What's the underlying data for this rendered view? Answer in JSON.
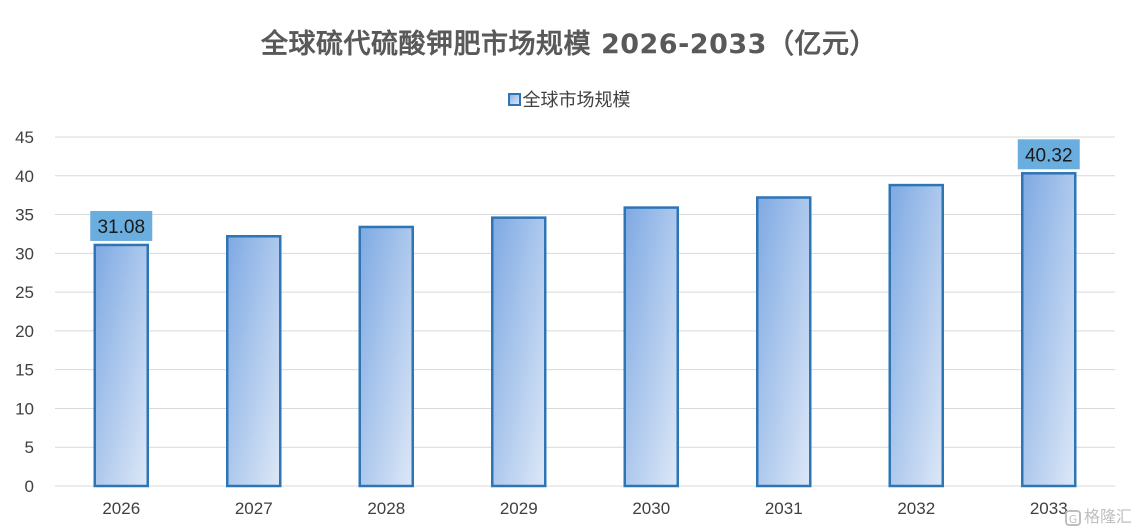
{
  "chart_data": {
    "type": "bar",
    "title": "全球硫代硫酸钾肥市场规模 2026-2033（亿元）",
    "categories": [
      "2026",
      "2027",
      "2028",
      "2029",
      "2030",
      "2031",
      "2032",
      "2033"
    ],
    "series": [
      {
        "name": "全球市场规模",
        "values": [
          31.08,
          32.2,
          33.4,
          34.6,
          35.9,
          37.2,
          38.8,
          40.32
        ]
      }
    ],
    "data_labels": [
      {
        "category": "2026",
        "label": "31.08"
      },
      {
        "category": "2033",
        "label": "40.32"
      }
    ],
    "ylim": [
      0,
      45
    ],
    "yticks": [
      "0",
      "5",
      "10",
      "15",
      "20",
      "25",
      "30",
      "35",
      "40",
      "45"
    ],
    "grid": true,
    "legend_position": "top-center",
    "colors": {
      "bar_fill_dark": "#7ea9e3",
      "bar_fill_light": "#dde8f7",
      "bar_border": "#2e75b6",
      "label_bg": "#6aaee0",
      "gridline": "#d9d9d9",
      "axis_text": "#404040",
      "title_text": "#595959"
    }
  },
  "watermark": {
    "icon": "gelonghui-logo-icon",
    "text": "格隆汇"
  }
}
